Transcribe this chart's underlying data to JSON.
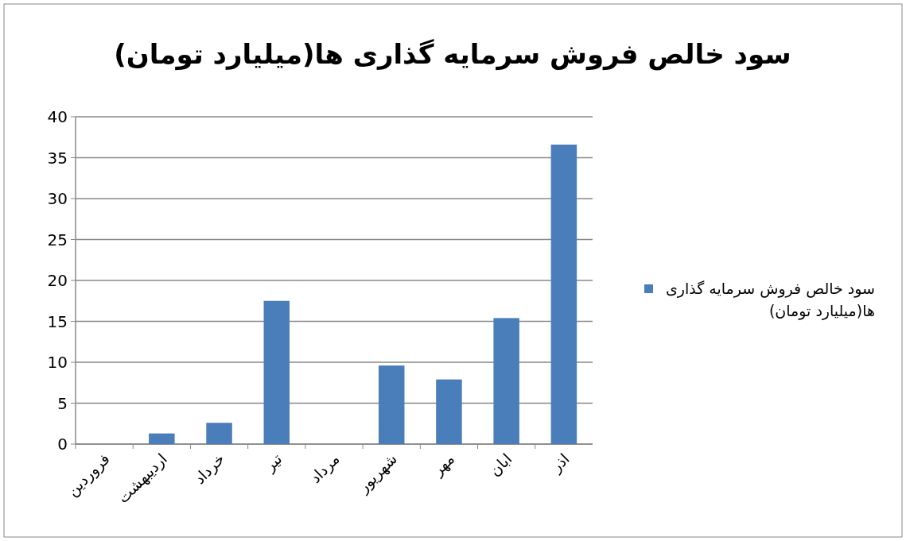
{
  "chart_data": {
    "type": "bar",
    "title": "سود خالص فروش سرمایه گذاری  ها(میلیارد تومان)",
    "categories": [
      "فروردین",
      "اردیبهشت",
      "خرداد",
      "تیر",
      "مرداد",
      "شهریور",
      "مهر",
      "ابان",
      "اذر"
    ],
    "series": [
      {
        "name": "سود خالص فروش سرمایه گذاری ها(میلیارد تومان)",
        "color": "#4a7ebb",
        "values": [
          0,
          1.3,
          2.6,
          17.5,
          0,
          9.6,
          7.9,
          15.4,
          36.6
        ]
      }
    ],
    "ylim": [
      0,
      40
    ],
    "yticks": [
      0,
      5,
      10,
      15,
      20,
      25,
      30,
      35,
      40
    ],
    "grid": "y",
    "legend": "right"
  }
}
